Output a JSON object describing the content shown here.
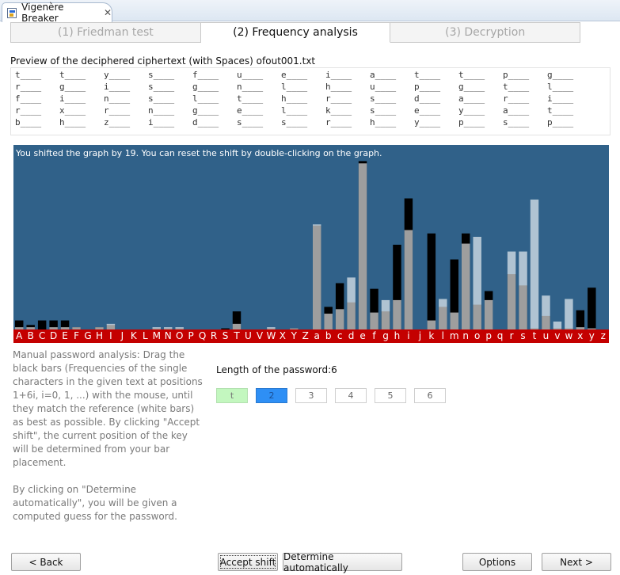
{
  "editor": {
    "tab_title": "Vigenère Breaker",
    "close_glyph": "✕",
    "icon": "vigenere-app-icon"
  },
  "steps": [
    {
      "label": "(1) Friedman test",
      "active": false
    },
    {
      "label": "(2) Frequency analysis",
      "active": true
    },
    {
      "label": "(3) Decryption",
      "active": false
    }
  ],
  "preview": {
    "label": "Preview of the deciphered ciphertext (with Spaces) ofout001.txt",
    "rows": [
      [
        "t____",
        "t____",
        "y____",
        "s____",
        "f____",
        "u____",
        "e____",
        "i____",
        "a____",
        "t____",
        "t____",
        "p____",
        "g____"
      ],
      [
        "r____",
        "g____",
        "i____",
        "s____",
        "g____",
        "n____",
        "l____",
        "h____",
        "u____",
        "p____",
        "g____",
        "t____",
        "l____"
      ],
      [
        "f____",
        "i____",
        "n____",
        "s____",
        "l____",
        "t____",
        "h____",
        "r____",
        "s____",
        "d____",
        "a____",
        "r____",
        "i____"
      ],
      [
        "r____",
        "x____",
        "r____",
        "n____",
        "g____",
        "e____",
        "l____",
        "k____",
        "s____",
        "e____",
        "y____",
        "a____",
        "t____"
      ],
      [
        "b____",
        "h____",
        "z____",
        "i____",
        "d____",
        "s____",
        "s____",
        "r____",
        "h____",
        "y____",
        "p____",
        "s____",
        "p____"
      ]
    ]
  },
  "graph": {
    "message": "You shifted the graph by 19. You can reset the shift by double-clicking on the graph.",
    "shift": 19,
    "colors": {
      "background": "#306189",
      "axis": "#c40000",
      "cipher_bar": "#000000",
      "reference_bar": "#ffffff"
    },
    "letters": [
      "A",
      "B",
      "C",
      "D",
      "E",
      "F",
      "G",
      "H",
      "I",
      "J",
      "K",
      "L",
      "M",
      "N",
      "O",
      "P",
      "Q",
      "R",
      "S",
      "T",
      "U",
      "V",
      "W",
      "X",
      "Y",
      "Z",
      "a",
      "b",
      "c",
      "d",
      "e",
      "f",
      "g",
      "h",
      "i",
      "j",
      "k",
      "l",
      "m",
      "n",
      "o",
      "p",
      "q",
      "r",
      "s",
      "t",
      "u",
      "v",
      "w",
      "x",
      "y",
      "z"
    ],
    "cipher_frequencies": [
      0.8,
      0.4,
      0.8,
      0.8,
      0.8,
      0.2,
      0,
      0.2,
      0.4,
      0,
      0,
      0,
      0.1,
      0.1,
      0.1,
      0,
      0,
      0,
      0.1,
      1.6,
      0,
      0,
      0.1,
      0,
      0.1,
      0,
      9.2,
      2.0,
      4.1,
      2.4,
      14.9,
      3.6,
      1.6,
      7.5,
      11.6,
      0,
      8.5,
      2.0,
      6.2,
      8.5,
      2.2,
      3.4,
      0,
      4.9,
      3.9,
      0.1,
      1.2,
      0.1,
      0.1,
      1.7,
      3.7,
      0
    ],
    "reference_frequencies": [
      0.2,
      0.2,
      0,
      0.2,
      0.2,
      0.2,
      0,
      0.2,
      0.5,
      0,
      0,
      0,
      0.2,
      0.2,
      0.2,
      0,
      0,
      0,
      0,
      0.5,
      0,
      0,
      0.2,
      0,
      0.1,
      0,
      9.3,
      1.4,
      1.8,
      4.6,
      14.7,
      1.5,
      2.6,
      2.6,
      8.8,
      0,
      0.8,
      2.7,
      1.5,
      7.6,
      8.2,
      2.6,
      0,
      6.9,
      6.9,
      11.5,
      3.0,
      0.7,
      2.7,
      0.2,
      0.1,
      0
    ]
  },
  "instructions": [
    "Manual password analysis: Drag the black bars (Frequencies of the single characters in the given text at positions 1+6i, i=0, 1, ...) with the mouse, until they match the reference (white bars) as best as possible. By clicking \"Accept shift\", the current position of the key will be determined from your bar placement.",
    "By clicking on \"Determine automatically\", you will be given a computed guess for the password."
  ],
  "password": {
    "length_label": "Length of the password:6",
    "cells": [
      {
        "value": "t",
        "state": "done"
      },
      {
        "value": "2",
        "state": "current"
      },
      {
        "value": "3",
        "state": "empty"
      },
      {
        "value": "4",
        "state": "empty"
      },
      {
        "value": "5",
        "state": "empty"
      },
      {
        "value": "6",
        "state": "empty"
      }
    ]
  },
  "buttons": {
    "back": "< Back",
    "accept": "Accept shift",
    "determine": "Determine automatically",
    "options": "Options",
    "next": "Next >"
  }
}
